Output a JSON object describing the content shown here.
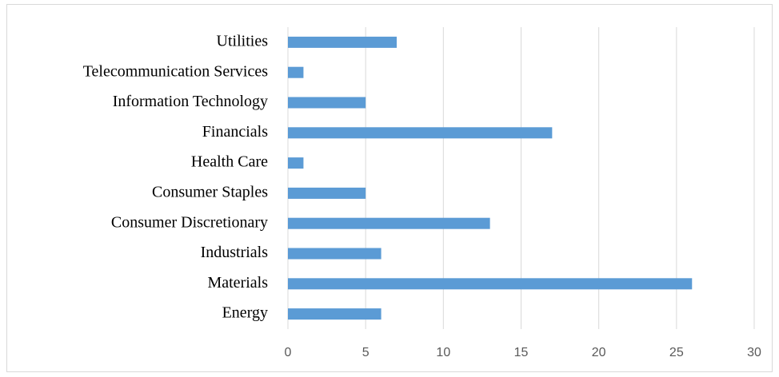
{
  "chart_data": {
    "type": "bar",
    "orientation": "horizontal",
    "categories": [
      "Energy",
      "Materials",
      "Industrials",
      "Consumer Discretionary",
      "Consumer Staples",
      "Health Care",
      "Financials",
      "Information Technology",
      "Telecommunication Services",
      "Utilities"
    ],
    "values": [
      6,
      26,
      6,
      13,
      5,
      1,
      17,
      5,
      1,
      7
    ],
    "color": "#5b9bd5",
    "xlim": [
      0,
      30
    ],
    "xticks": [
      0,
      5,
      10,
      15,
      20,
      25,
      30
    ],
    "grid": true
  }
}
